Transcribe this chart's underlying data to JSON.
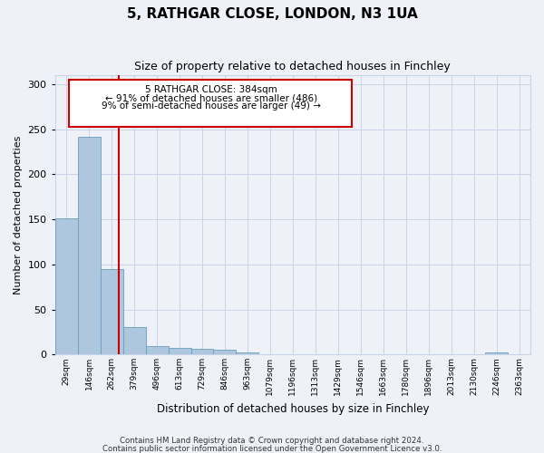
{
  "title": "5, RATHGAR CLOSE, LONDON, N3 1UA",
  "subtitle": "Size of property relative to detached houses in Finchley",
  "xlabel": "Distribution of detached houses by size in Finchley",
  "ylabel": "Number of detached properties",
  "bin_labels": [
    "29sqm",
    "146sqm",
    "262sqm",
    "379sqm",
    "496sqm",
    "613sqm",
    "729sqm",
    "846sqm",
    "963sqm",
    "1079sqm",
    "1196sqm",
    "1313sqm",
    "1429sqm",
    "1546sqm",
    "1663sqm",
    "1780sqm",
    "1896sqm",
    "2013sqm",
    "2130sqm",
    "2246sqm",
    "2363sqm"
  ],
  "bar_heights": [
    151,
    242,
    95,
    30,
    9,
    7,
    6,
    5,
    2,
    0,
    0,
    0,
    0,
    0,
    0,
    0,
    0,
    0,
    0,
    2,
    0
  ],
  "bar_color": "#aec6de",
  "bar_edge_color": "#6a9ec0",
  "vline_x_idx": 2.82,
  "annotation_title": "5 RATHGAR CLOSE: 384sqm",
  "annotation_line1": "← 91% of detached houses are smaller (486)",
  "annotation_line2": "9% of semi-detached houses are larger (49) →",
  "annotation_box_color": "#cc0000",
  "vline_color": "#cc0000",
  "bg_color": "#eef2f8",
  "grid_color": "#c8d4e8",
  "footer1": "Contains HM Land Registry data © Crown copyright and database right 2024.",
  "footer2": "Contains public sector information licensed under the Open Government Licence v3.0.",
  "ylim": [
    0,
    310
  ],
  "yticks": [
    0,
    50,
    100,
    150,
    200,
    250,
    300
  ]
}
